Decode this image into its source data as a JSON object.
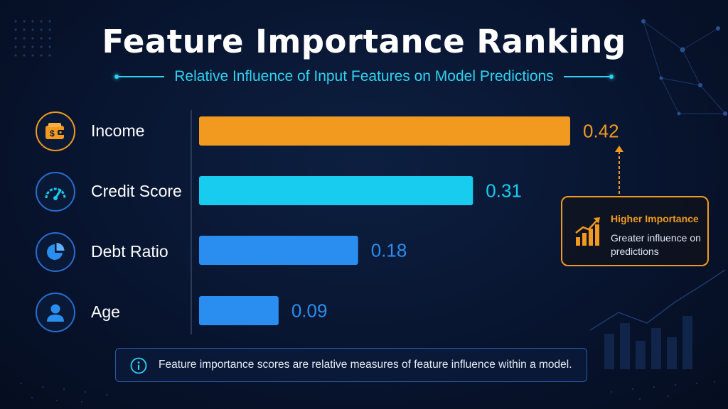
{
  "title": "Feature Importance Ranking",
  "subtitle": "Relative Influence of Input Features on Model Predictions",
  "features": [
    {
      "label": "Income",
      "value": "0.42",
      "icon": "wallet-dollar-icon",
      "color": "#f29a1f"
    },
    {
      "label": "Credit Score",
      "value": "0.31",
      "icon": "speedometer-icon",
      "color": "#18ccf0"
    },
    {
      "label": "Debt Ratio",
      "value": "0.18",
      "icon": "pie-chart-icon",
      "color": "#2a8ef0"
    },
    {
      "label": "Age",
      "value": "0.09",
      "icon": "person-icon",
      "color": "#2a8ef0"
    }
  ],
  "chart_data": {
    "type": "bar",
    "orientation": "horizontal",
    "categories": [
      "Income",
      "Credit Score",
      "Debt Ratio",
      "Age"
    ],
    "values": [
      0.42,
      0.31,
      0.18,
      0.09
    ],
    "value_labels": [
      "0.42",
      "0.31",
      "0.18",
      "0.09"
    ],
    "colors": [
      "#f29a1f",
      "#18ccf0",
      "#2a8ef0",
      "#2a8ef0"
    ],
    "title": "Feature Importance Ranking",
    "subtitle": "Relative Influence of Input Features on Model Predictions",
    "xlim": [
      0,
      0.42
    ],
    "grid": false,
    "legend": "none"
  },
  "callout": {
    "title": "Higher Importance",
    "description": "Greater influence on predictions",
    "icon": "trending-bar-chart-icon",
    "accent": "#f29a1f"
  },
  "footer": {
    "icon": "info-icon",
    "text": "Feature importance scores are relative measures of feature influence within a model."
  }
}
